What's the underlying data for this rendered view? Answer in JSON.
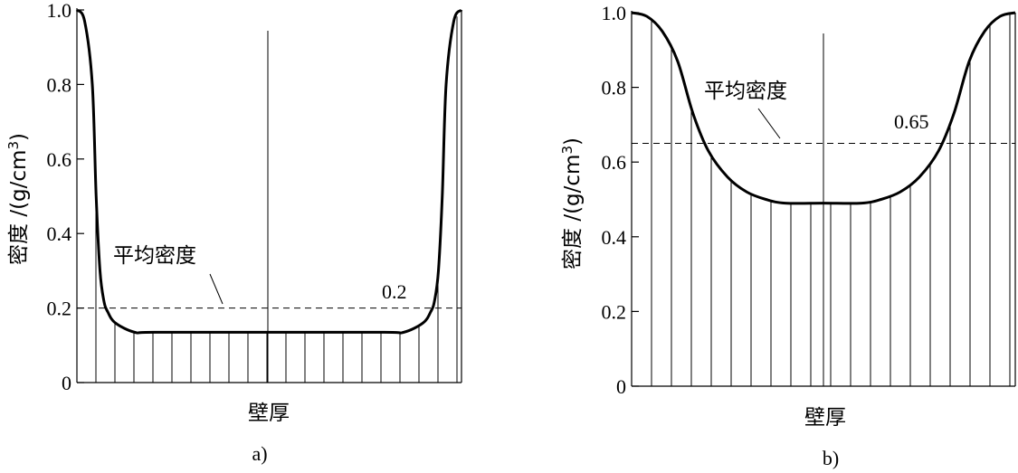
{
  "chart_data": [
    {
      "type": "line",
      "panel": "a)",
      "xlabel": "壁厚",
      "ylabel": "密度 /(g/cm3)",
      "ylim": [
        0,
        1.0
      ],
      "yticks": [
        "0",
        "0.2",
        "0.4",
        "0.6",
        "0.8",
        "1.0"
      ],
      "x": [
        0,
        0.02,
        0.04,
        0.05,
        0.06,
        0.07,
        0.08,
        0.1,
        0.15,
        0.2,
        0.5,
        0.8,
        0.85,
        0.9,
        0.92,
        0.93,
        0.94,
        0.95,
        0.96,
        0.98,
        1.0
      ],
      "series": [
        {
          "values": [
            1.0,
            0.97,
            0.8,
            0.5,
            0.3,
            0.22,
            0.19,
            0.16,
            0.135,
            0.135,
            0.135,
            0.135,
            0.135,
            0.16,
            0.19,
            0.22,
            0.3,
            0.5,
            0.8,
            0.97,
            1.0
          ]
        }
      ],
      "average_line": {
        "y": 0.2,
        "label": "平均密度",
        "value_label": "0.2"
      },
      "vertical_hatching": true,
      "center_line": true
    },
    {
      "type": "line",
      "panel": "b)",
      "xlabel": "壁厚",
      "ylabel": "密度 /(g/cm3)",
      "ylim": [
        0,
        1.0
      ],
      "yticks": [
        "0",
        "0.2",
        "0.4",
        "0.6",
        "0.8",
        "1.0"
      ],
      "x": [
        0,
        0.04,
        0.08,
        0.12,
        0.16,
        0.2,
        0.25,
        0.3,
        0.35,
        0.4,
        0.5,
        0.6,
        0.65,
        0.7,
        0.75,
        0.8,
        0.84,
        0.88,
        0.92,
        0.96,
        1.0
      ],
      "series": [
        {
          "values": [
            1.0,
            0.99,
            0.95,
            0.87,
            0.73,
            0.63,
            0.56,
            0.52,
            0.5,
            0.49,
            0.49,
            0.49,
            0.5,
            0.52,
            0.56,
            0.63,
            0.73,
            0.87,
            0.95,
            0.99,
            1.0
          ]
        }
      ],
      "average_line": {
        "y": 0.65,
        "label": "平均密度",
        "value_label": "0.65"
      },
      "vertical_hatching": true,
      "center_line": true
    }
  ]
}
